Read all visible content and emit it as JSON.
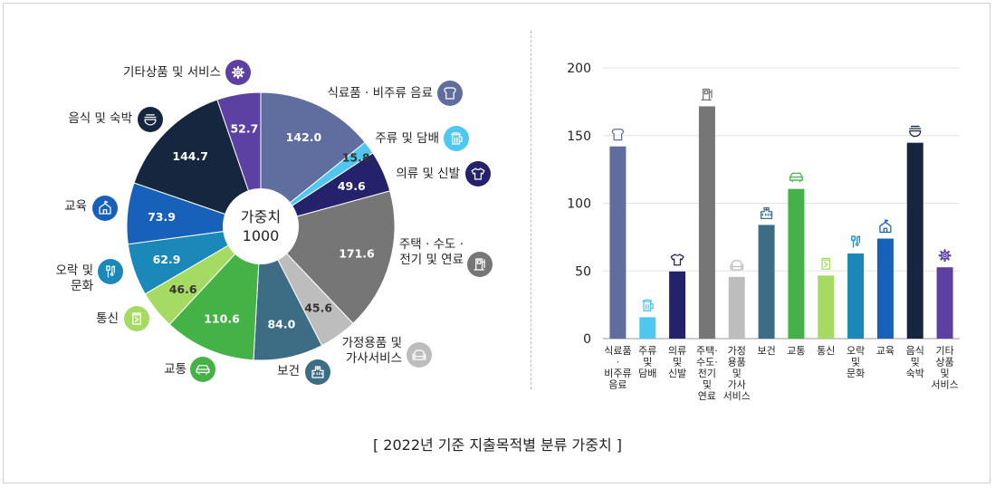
{
  "caption": "[ 2022년 기준 지출목적별 분류 가중치 ]",
  "center_label": {
    "line1": "가중치",
    "line2": "1000"
  },
  "chart_data": [
    {
      "type": "pie",
      "donut": true,
      "title": "가중치 1000",
      "total": 1000,
      "slices": [
        {
          "label": "식료품 · 비주류 음료",
          "value": 142.0,
          "display": "142.0",
          "color": "#5F6E9E",
          "icon": "bread-icon"
        },
        {
          "label": "주류 및 담배",
          "value": 15.8,
          "display": "15.8",
          "color": "#4FC7EE",
          "icon": "beer-icon"
        },
        {
          "label": "의류 및 신발",
          "value": 49.6,
          "display": "49.6",
          "color": "#24226A",
          "icon": "shirt-icon"
        },
        {
          "label": "주택 · 수도 · 전기 및 연료",
          "value": 171.6,
          "display": "171.6",
          "color": "#767676",
          "icon": "fuel-icon"
        },
        {
          "label": "가정용품 및 가사서비스",
          "value": 45.6,
          "display": "45.6",
          "color": "#BDBDBD",
          "icon": "sofa-icon"
        },
        {
          "label": "보건",
          "value": 84.0,
          "display": "84.0",
          "color": "#3C6D85",
          "icon": "hospital-icon"
        },
        {
          "label": "교통",
          "value": 110.6,
          "display": "110.6",
          "color": "#45B248",
          "icon": "car-icon"
        },
        {
          "label": "통신",
          "value": 46.6,
          "display": "46.6",
          "color": "#A5DB62",
          "icon": "phone-icon"
        },
        {
          "label": "오락 및 문화",
          "value": 62.9,
          "display": "62.9",
          "color": "#1A88B8",
          "icon": "microphone-icon"
        },
        {
          "label": "교육",
          "value": 73.9,
          "display": "73.9",
          "color": "#1861BA",
          "icon": "school-icon"
        },
        {
          "label": "음식 및 숙박",
          "value": 144.7,
          "display": "144.7",
          "color": "#16263F",
          "icon": "bowl-icon"
        },
        {
          "label": "기타상품 및 서비스",
          "value": 52.7,
          "display": "52.7",
          "color": "#5D41A2",
          "icon": "gear-icon"
        }
      ]
    },
    {
      "type": "bar",
      "ylim": [
        0,
        200
      ],
      "yticks": [
        0,
        50,
        100,
        150,
        200
      ],
      "xlabel": "",
      "ylabel": "",
      "categories": [
        [
          "식료품",
          "·",
          "비주류",
          "음료"
        ],
        [
          "주류",
          "및",
          "담배"
        ],
        [
          "의류",
          "및",
          "신발"
        ],
        [
          "주택·",
          "수도·",
          "전기",
          "및",
          "연료"
        ],
        [
          "가정",
          "용품",
          "및",
          "가사",
          "서비스"
        ],
        [
          "보건"
        ],
        [
          "교통"
        ],
        [
          "통신"
        ],
        [
          "오락",
          "및",
          "문화"
        ],
        [
          "교육"
        ],
        [
          "음식",
          "및",
          "숙박"
        ],
        [
          "기타",
          "상품",
          "및",
          "서비스"
        ]
      ],
      "values": [
        142.0,
        15.8,
        49.6,
        171.6,
        45.6,
        84.0,
        110.6,
        46.6,
        62.9,
        73.9,
        144.7,
        52.7
      ],
      "colors": [
        "#5F6E9E",
        "#4FC7EE",
        "#24226A",
        "#767676",
        "#BDBDBD",
        "#3C6D85",
        "#45B248",
        "#A5DB62",
        "#1A88B8",
        "#1861BA",
        "#16263F",
        "#5D41A2"
      ],
      "icons": [
        "bread-icon",
        "beer-icon",
        "shirt-icon",
        "fuel-icon",
        "sofa-icon",
        "hospital-icon",
        "car-icon",
        "phone-icon",
        "microphone-icon",
        "school-icon",
        "bowl-icon",
        "gear-icon"
      ]
    }
  ],
  "pie_labels": [
    {
      "lines": [
        "식료품 · 비주류 음료"
      ]
    },
    {
      "lines": [
        "주류 및 담배"
      ]
    },
    {
      "lines": [
        "의류 및 신발"
      ]
    },
    {
      "lines": [
        "주택 · 수도 ·",
        "전기 및 연료"
      ]
    },
    {
      "lines": [
        "가정용품 및",
        "가사서비스"
      ]
    },
    {
      "lines": [
        "보건"
      ]
    },
    {
      "lines": [
        "교통"
      ]
    },
    {
      "lines": [
        "통신"
      ]
    },
    {
      "lines": [
        "오락 및",
        "문화"
      ]
    },
    {
      "lines": [
        "교육"
      ]
    },
    {
      "lines": [
        "음식 및 숙박"
      ]
    },
    {
      "lines": [
        "기타상품 및 서비스"
      ]
    }
  ]
}
